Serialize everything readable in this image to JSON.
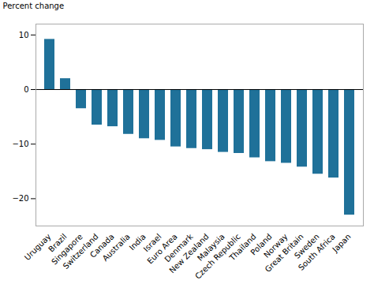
{
  "chart_data": {
    "type": "bar",
    "categories": [
      "Uruguay",
      "Brazil",
      "Singapore",
      "Switzerland",
      "Canada",
      "Australia",
      "India",
      "Israel",
      "Euro Area",
      "Denmark",
      "New Zealand",
      "Malaysia",
      "Czech Republic",
      "Thailand",
      "Poland",
      "Norway",
      "Great Britain",
      "Sweden",
      "South Africa",
      "Japan"
    ],
    "values": [
      9.2,
      2.0,
      -3.5,
      -6.5,
      -6.8,
      -8.2,
      -9.0,
      -9.3,
      -10.5,
      -10.8,
      -11.0,
      -11.5,
      -11.7,
      -12.5,
      -13.2,
      -13.5,
      -14.2,
      -15.5,
      -16.2,
      -23.0
    ],
    "color": "#1f7199",
    "ylabel": "Percent change",
    "ylim": [
      -25,
      12
    ],
    "yticks": [
      -20,
      -10,
      0,
      10
    ],
    "grid": false
  }
}
